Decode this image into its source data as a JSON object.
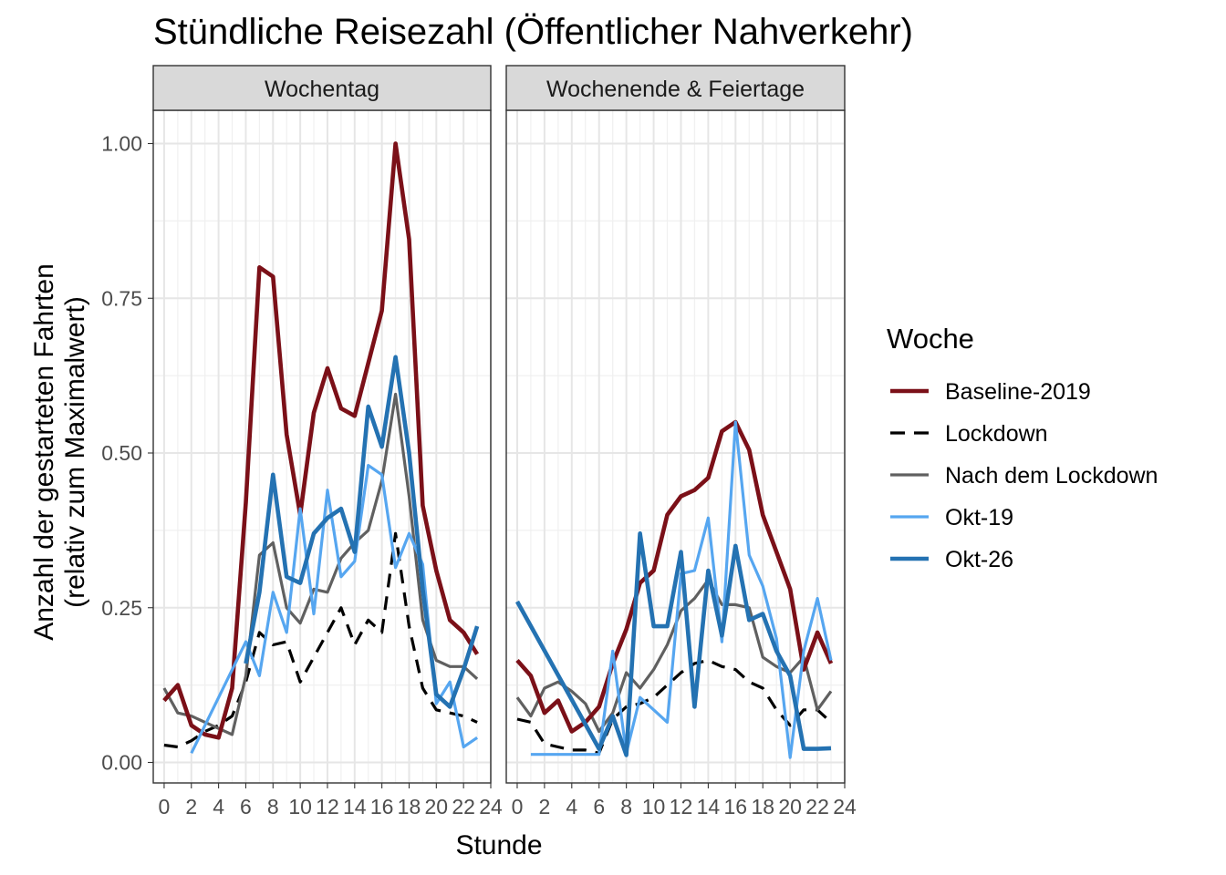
{
  "chart_data": {
    "type": "line",
    "title": "Stündliche Reisezahl (Öffentlicher Nahverkehr)",
    "xlabel": "Stunde",
    "ylabel": [
      "Anzahl der gestarteten Fahrten",
      "(relativ zum Maximalwert)"
    ],
    "xlim": [
      -0.8,
      24
    ],
    "ylim": [
      -0.03,
      1.05
    ],
    "x_ticks": [
      0,
      2,
      4,
      6,
      8,
      10,
      12,
      14,
      16,
      18,
      20,
      22,
      24
    ],
    "x_tick_labels": [
      "0",
      "2",
      "4",
      "6",
      "8",
      "10",
      "12",
      "14",
      "16",
      "18",
      "20",
      "22",
      "24"
    ],
    "y_ticks": [
      0,
      0.25,
      0.5,
      0.75,
      1.0
    ],
    "y_tick_labels": [
      "0.00",
      "0.25",
      "0.50",
      "0.75",
      "1.00"
    ],
    "grid": true,
    "legend": {
      "title": "Woche",
      "position": "right",
      "entries": [
        {
          "name": "Baseline-2019",
          "color": "#7b1018",
          "dash": "solid",
          "width": "thick"
        },
        {
          "name": "Lockdown",
          "color": "#000000",
          "dash": "dashed",
          "width": "medium"
        },
        {
          "name": "Nach dem Lockdown",
          "color": "#606060",
          "dash": "solid",
          "width": "medium"
        },
        {
          "name": "Okt-19",
          "color": "#56a6f0",
          "dash": "solid",
          "width": "medium"
        },
        {
          "name": "Okt-26",
          "color": "#2472b2",
          "dash": "solid",
          "width": "thick"
        }
      ]
    },
    "panels": [
      {
        "label": "Wochentag",
        "series": [
          {
            "name": "Baseline-2019",
            "x": [
              0,
              1,
              2,
              3,
              4,
              5,
              6,
              7,
              8,
              9,
              10,
              11,
              12,
              13,
              14,
              15,
              16,
              17,
              18,
              19,
              20,
              21,
              22,
              23
            ],
            "values": [
              0.1,
              0.125,
              0.06,
              0.045,
              0.04,
              0.12,
              0.42,
              0.8,
              0.785,
              0.53,
              0.4,
              0.565,
              0.637,
              0.572,
              0.56,
              0.645,
              0.73,
              1.0,
              0.845,
              0.415,
              0.31,
              0.23,
              0.21,
              0.175
            ]
          },
          {
            "name": "Lockdown",
            "x": [
              0,
              1,
              2,
              3,
              4,
              5,
              6,
              7,
              8,
              9,
              10,
              11,
              12,
              13,
              14,
              15,
              16,
              17,
              18,
              19,
              20,
              21,
              22,
              23
            ],
            "values": [
              0.028,
              0.025,
              0.035,
              0.05,
              0.06,
              0.075,
              0.13,
              0.21,
              0.19,
              0.195,
              0.13,
              0.17,
              0.21,
              0.25,
              0.19,
              0.23,
              0.21,
              0.37,
              0.22,
              0.12,
              0.085,
              0.08,
              0.075,
              0.065
            ]
          },
          {
            "name": "Nach dem Lockdown",
            "x": [
              0,
              1,
              2,
              3,
              4,
              5,
              6,
              7,
              8,
              9,
              10,
              11,
              12,
              13,
              14,
              15,
              16,
              17,
              18,
              19,
              20,
              21,
              22,
              23
            ],
            "values": [
              0.12,
              0.08,
              0.075,
              0.065,
              0.055,
              0.045,
              0.14,
              0.335,
              0.355,
              0.25,
              0.225,
              0.28,
              0.275,
              0.33,
              0.355,
              0.375,
              0.455,
              0.595,
              0.43,
              0.23,
              0.165,
              0.155,
              0.155,
              0.135
            ]
          },
          {
            "name": "Okt-19",
            "x": [
              2,
              6,
              7,
              8,
              9,
              10,
              11,
              12,
              13,
              14,
              15,
              16,
              17,
              18,
              19,
              20,
              21,
              22,
              23
            ],
            "values": [
              0.015,
              0.195,
              0.14,
              0.275,
              0.21,
              0.41,
              0.24,
              0.44,
              0.3,
              0.325,
              0.48,
              0.465,
              0.315,
              0.37,
              0.32,
              0.095,
              0.13,
              0.025,
              0.04
            ]
          },
          {
            "name": "Okt-26",
            "x": [
              6,
              7,
              8,
              9,
              10,
              11,
              12,
              13,
              14,
              15,
              16,
              17,
              18,
              19,
              20,
              21,
              22,
              23
            ],
            "values": [
              0.16,
              0.275,
              0.465,
              0.3,
              0.29,
              0.37,
              0.395,
              0.41,
              0.34,
              0.575,
              0.51,
              0.655,
              0.5,
              0.28,
              0.11,
              0.09,
              0.15,
              0.22
            ]
          }
        ]
      },
      {
        "label": "Wochenende & Feiertage",
        "series": [
          {
            "name": "Baseline-2019",
            "x": [
              0,
              1,
              2,
              3,
              4,
              5,
              6,
              7,
              8,
              9,
              10,
              11,
              12,
              13,
              14,
              15,
              16,
              17,
              18,
              19,
              20,
              21,
              22,
              23
            ],
            "values": [
              0.165,
              0.14,
              0.08,
              0.1,
              0.05,
              0.065,
              0.09,
              0.16,
              0.215,
              0.29,
              0.31,
              0.4,
              0.43,
              0.44,
              0.46,
              0.535,
              0.55,
              0.505,
              0.4,
              0.34,
              0.28,
              0.15,
              0.21,
              0.16
            ]
          },
          {
            "name": "Lockdown",
            "x": [
              0,
              1,
              2,
              3,
              4,
              5,
              6,
              7,
              8,
              9,
              10,
              11,
              12,
              13,
              14,
              15,
              16,
              17,
              18,
              19,
              20,
              21,
              22,
              23
            ],
            "values": [
              0.07,
              0.065,
              0.03,
              0.025,
              0.02,
              0.02,
              0.015,
              0.07,
              0.09,
              0.095,
              0.105,
              0.125,
              0.145,
              0.16,
              0.165,
              0.155,
              0.15,
              0.13,
              0.12,
              0.085,
              0.06,
              0.085,
              0.085,
              0.065
            ]
          },
          {
            "name": "Nach dem Lockdown",
            "x": [
              0,
              1,
              2,
              3,
              4,
              5,
              6,
              7,
              8,
              9,
              10,
              11,
              12,
              13,
              14,
              15,
              16,
              17,
              18,
              19,
              20,
              21,
              22,
              23
            ],
            "values": [
              0.105,
              0.075,
              0.12,
              0.13,
              0.115,
              0.095,
              0.05,
              0.08,
              0.145,
              0.12,
              0.15,
              0.19,
              0.245,
              0.265,
              0.295,
              0.255,
              0.255,
              0.25,
              0.17,
              0.155,
              0.145,
              0.17,
              0.085,
              0.115
            ]
          },
          {
            "name": "Okt-19",
            "x": [
              1,
              6,
              7,
              8,
              9,
              10,
              11,
              12,
              13,
              14,
              15,
              16,
              17,
              18,
              19,
              20,
              21,
              22,
              23
            ],
            "values": [
              0.013,
              0.013,
              0.18,
              0.015,
              0.105,
              0.085,
              0.065,
              0.305,
              0.31,
              0.395,
              0.195,
              0.55,
              0.335,
              0.285,
              0.2,
              0.008,
              0.18,
              0.265,
              0.165
            ]
          },
          {
            "name": "Okt-26",
            "x": [
              0,
              6,
              7,
              8,
              9,
              10,
              11,
              12,
              13,
              14,
              15,
              16,
              17,
              18,
              19,
              20,
              21,
              22,
              23
            ],
            "values": [
              0.26,
              0.022,
              0.075,
              0.012,
              0.37,
              0.22,
              0.22,
              0.34,
              0.09,
              0.31,
              0.205,
              0.35,
              0.23,
              0.24,
              0.18,
              0.14,
              0.022,
              0.022,
              0.023
            ]
          }
        ]
      }
    ]
  }
}
